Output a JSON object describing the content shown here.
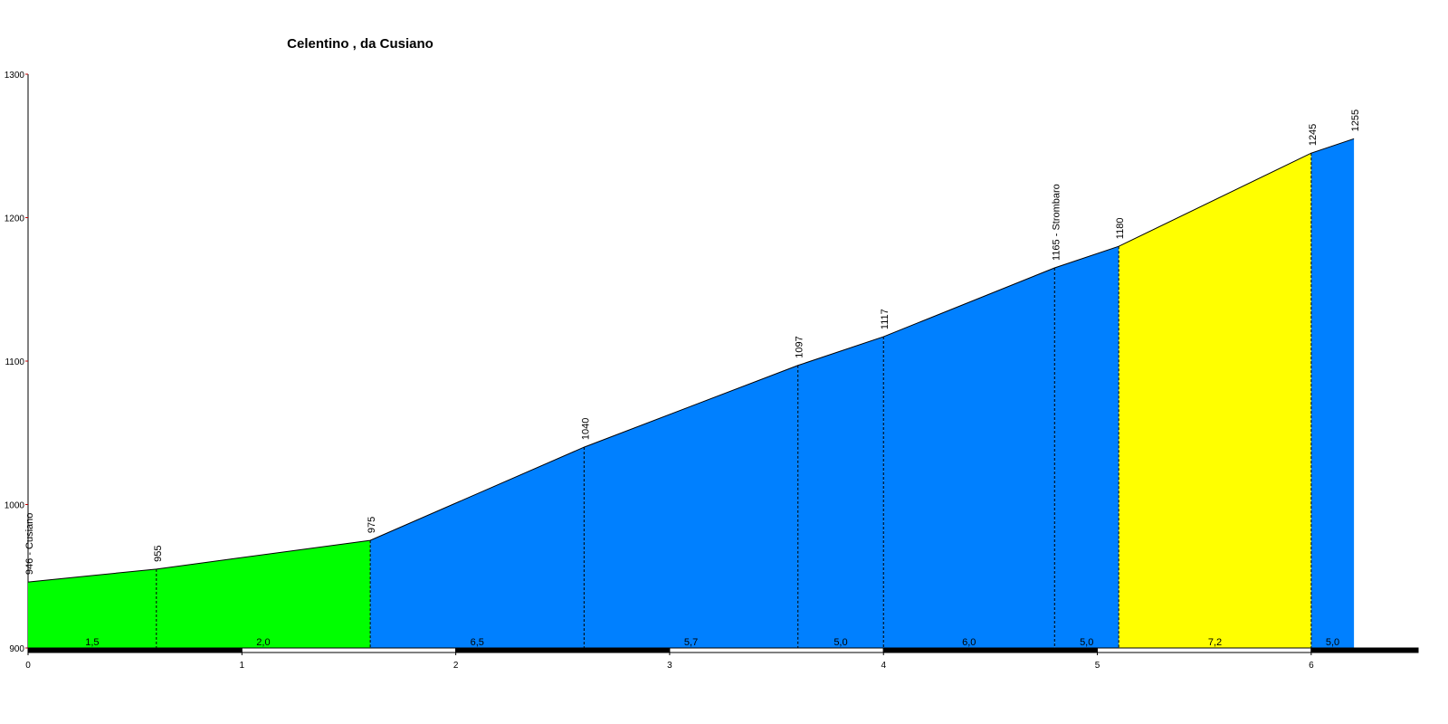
{
  "chart_data": {
    "type": "profile",
    "title": "Celentino , da Cusiano",
    "x": [
      0,
      0.6,
      1.6,
      2.6,
      3.6,
      4.0,
      4.8,
      5.1,
      6.0,
      6.2
    ],
    "values": [
      946,
      955,
      975,
      1040,
      1097,
      1117,
      1165,
      1180,
      1245,
      1255
    ],
    "value_labels": [
      "946 - Cusiano",
      "955",
      "975",
      "1040",
      "1097",
      "1117",
      "1165 - Strombaro",
      "1180",
      "1245",
      "1255"
    ],
    "segments": {
      "values": [
        1.5,
        2.0,
        6.5,
        5.7,
        5.0,
        6.0,
        5.0,
        7.2,
        5.0
      ],
      "value_labels": [
        "1,5",
        "2,0",
        "6,5",
        "5,7",
        "5,0",
        "6,0",
        "5,0",
        "7,2",
        "5,0"
      ],
      "colors": [
        "#00ff00",
        "#00ff00",
        "#0080ff",
        "#0080ff",
        "#0080ff",
        "#0080ff",
        "#0080ff",
        "#ffff00",
        "#0080ff"
      ]
    },
    "xlim": [
      0,
      6.5
    ],
    "ylim": [
      900,
      1300
    ],
    "xticks": [
      0,
      1,
      2,
      3,
      4,
      5,
      6
    ],
    "yticks": [
      900,
      1000,
      1100,
      1200,
      1300
    ]
  }
}
